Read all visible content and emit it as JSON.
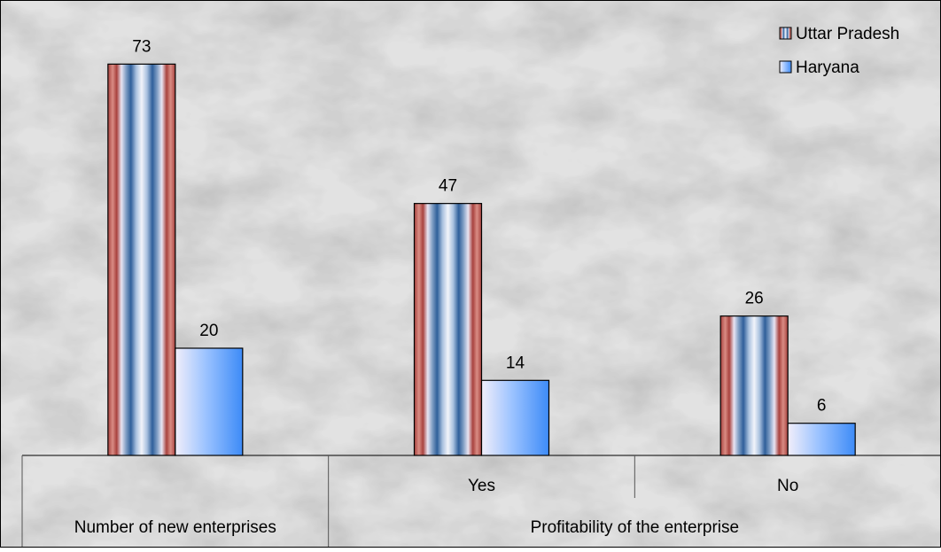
{
  "chart_data": {
    "type": "bar",
    "title": "",
    "xlabel": "",
    "ylabel": "",
    "ylim": [
      0,
      80
    ],
    "grid": false,
    "legend_position": "top-right",
    "categories": [
      "",
      "Yes",
      "No"
    ],
    "category_groups": [
      {
        "label": "Number of new enterprises",
        "span": [
          0,
          0
        ]
      },
      {
        "label": "Profitability of  the enterprise",
        "span": [
          1,
          2
        ]
      }
    ],
    "series": [
      {
        "name": "Uttar Pradesh",
        "values": [
          73,
          47,
          26
        ],
        "color": "#b5524c"
      },
      {
        "name": "Haryana",
        "values": [
          20,
          14,
          6
        ],
        "color": "#5b9bf5"
      }
    ]
  }
}
